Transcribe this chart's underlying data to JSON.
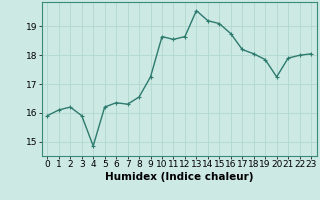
{
  "x": [
    0,
    1,
    2,
    3,
    4,
    5,
    6,
    7,
    8,
    9,
    10,
    11,
    12,
    13,
    14,
    15,
    16,
    17,
    18,
    19,
    20,
    21,
    22,
    23
  ],
  "y": [
    15.9,
    16.1,
    16.2,
    15.9,
    14.85,
    16.2,
    16.35,
    16.3,
    16.55,
    17.25,
    18.65,
    18.55,
    18.65,
    19.55,
    19.2,
    19.1,
    18.75,
    18.2,
    18.05,
    17.85,
    17.25,
    17.9,
    18.0,
    18.05
  ],
  "xlabel": "Humidex (Indice chaleur)",
  "bg_color": "#cce9e4",
  "line_color": "#2d7a6e",
  "marker_color": "#2d7a6e",
  "grid_color": "#b0d8d0",
  "ylim": [
    14.5,
    19.85
  ],
  "xlim": [
    -0.5,
    23.5
  ],
  "yticks": [
    15,
    16,
    17,
    18,
    19
  ],
  "xticks": [
    0,
    1,
    2,
    3,
    4,
    5,
    6,
    7,
    8,
    9,
    10,
    11,
    12,
    13,
    14,
    15,
    16,
    17,
    18,
    19,
    20,
    21,
    22,
    23
  ],
  "xlabel_fontsize": 7.5,
  "tick_fontsize": 6.5,
  "line_width": 1.0,
  "marker_size": 2.5
}
